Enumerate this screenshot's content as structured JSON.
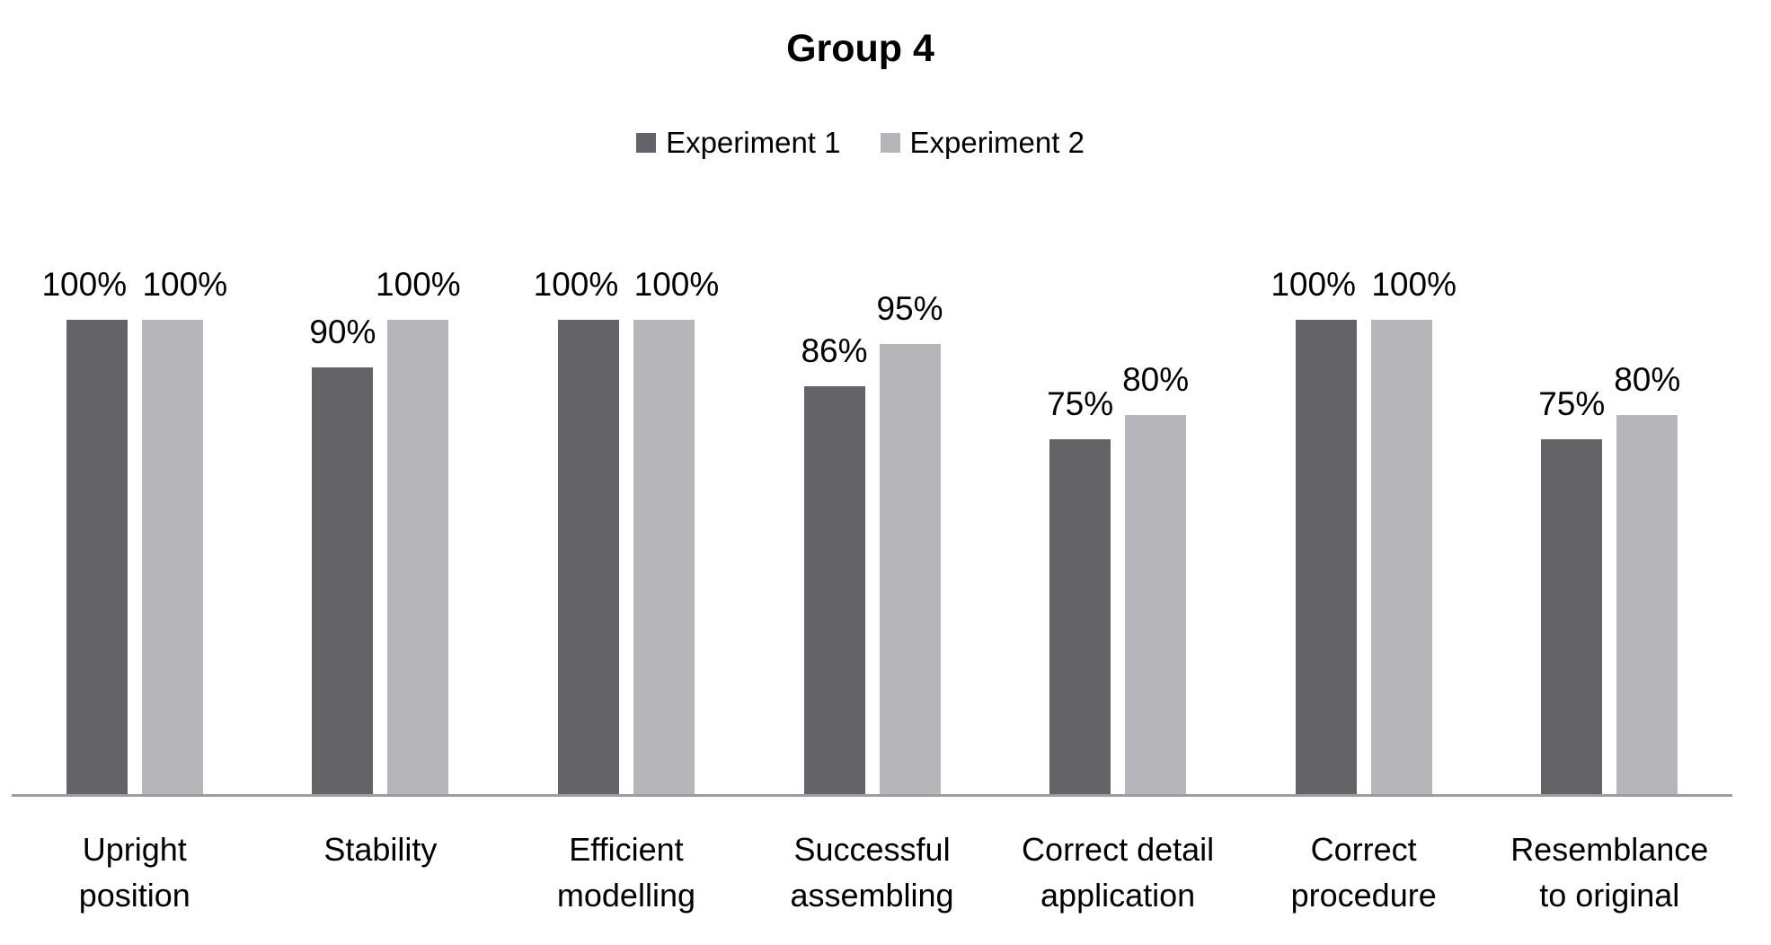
{
  "chart_data": {
    "type": "bar",
    "title": "Group 4",
    "categories": [
      "Upright position",
      "Stability",
      "Efficient modelling",
      "Successful assembling",
      "Correct detail application",
      "Correct procedure",
      "Resemblance to original"
    ],
    "category_tick_lines": [
      "Upright\nposition",
      "Stability",
      "Efficient\nmodelling",
      "Successful\nassembling",
      "Correct detail\napplication",
      "Correct\nprocedure",
      "Resemblance\nto original"
    ],
    "series": [
      {
        "name": "Experiment 1",
        "values": [
          100,
          90,
          100,
          86,
          75,
          100,
          75
        ],
        "labels": [
          "100%",
          "90%",
          "100%",
          "86%",
          "75%",
          "100%",
          "75%"
        ],
        "color": "#646468"
      },
      {
        "name": "Experiment 2",
        "values": [
          100,
          100,
          100,
          95,
          80,
          100,
          80
        ],
        "labels": [
          "100%",
          "100%",
          "100%",
          "95%",
          "80%",
          "100%",
          "80%"
        ],
        "color": "#b6b6ba"
      }
    ],
    "ylabel": "",
    "xlabel": "",
    "ylim": [
      0,
      100
    ],
    "grid": false,
    "legend_position": "top",
    "data_labels": "outside-end",
    "axis_line_color": "#9d9da1",
    "text_color": "#000000",
    "background": "#ffffff"
  }
}
